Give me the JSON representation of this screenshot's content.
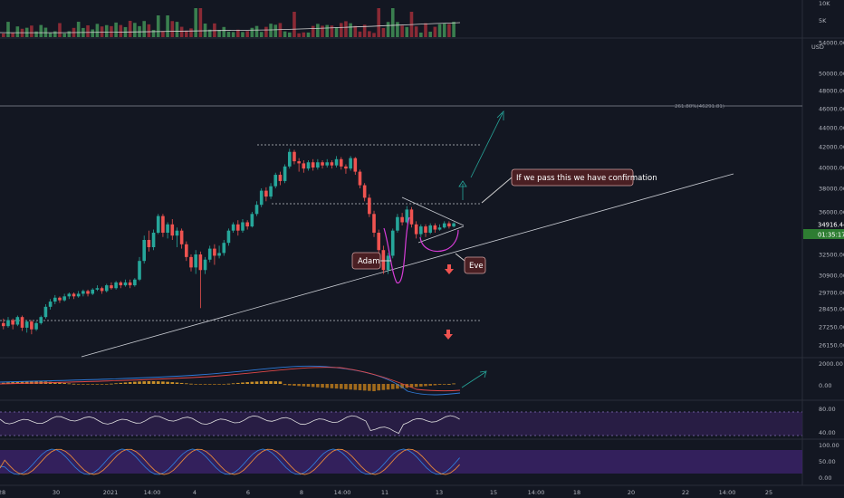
{
  "chart_data": {
    "type": "candlestick",
    "instrument_quote": "USD",
    "colors": {
      "up": "#26a69a",
      "down": "#ef5350",
      "bg": "#131722",
      "grid": "#1e222d"
    },
    "main": {
      "y_ticks": [
        26150,
        27250,
        28450,
        29700,
        30900,
        32500,
        34000,
        36000,
        38000,
        40000,
        42000,
        44000,
        46000,
        48000,
        50000,
        54000
      ],
      "candles": [
        [
          27500,
          27300,
          27800,
          27100
        ],
        [
          27300,
          27700,
          27900,
          27200
        ],
        [
          27700,
          27400,
          27800,
          27100
        ],
        [
          27400,
          27900,
          28000,
          27300
        ],
        [
          27900,
          27200,
          28000,
          27000
        ],
        [
          27200,
          27600,
          27700,
          26900
        ],
        [
          27600,
          27100,
          27700,
          26800
        ],
        [
          27100,
          27500,
          27600,
          27000
        ],
        [
          27500,
          27900,
          28000,
          27400
        ],
        [
          27900,
          28600,
          28800,
          27800
        ],
        [
          28600,
          29000,
          29200,
          28400
        ],
        [
          29000,
          29300,
          29500,
          28800
        ],
        [
          29300,
          29100,
          29400,
          28900
        ],
        [
          29100,
          29400,
          29600,
          29000
        ],
        [
          29400,
          29600,
          29700,
          29200
        ],
        [
          29600,
          29400,
          29700,
          29200
        ],
        [
          29400,
          29600,
          29800,
          29300
        ],
        [
          29600,
          29800,
          29900,
          29400
        ],
        [
          29800,
          29600,
          29900,
          29400
        ],
        [
          29600,
          29900,
          30000,
          29500
        ],
        [
          29900,
          30000,
          30200,
          29800
        ],
        [
          30000,
          29800,
          30100,
          29600
        ],
        [
          29800,
          30200,
          30300,
          29700
        ],
        [
          30200,
          30000,
          30400,
          29900
        ],
        [
          30000,
          30400,
          30500,
          29900
        ],
        [
          30400,
          30200,
          30500,
          30000
        ],
        [
          30200,
          30400,
          30600,
          30100
        ],
        [
          30400,
          30200,
          30600,
          30000
        ],
        [
          30200,
          30600,
          30700,
          30100
        ],
        [
          30600,
          32000,
          32300,
          30500
        ],
        [
          32000,
          33500,
          33800,
          31800
        ],
        [
          33500,
          33000,
          34200,
          32700
        ],
        [
          33000,
          34000,
          34300,
          32800
        ],
        [
          34000,
          35600,
          35800,
          33900
        ],
        [
          35600,
          34000,
          35800,
          33700
        ],
        [
          34000,
          34800,
          35000,
          33600
        ],
        [
          34800,
          33800,
          35300,
          33500
        ],
        [
          33800,
          34200,
          34500,
          33000
        ],
        [
          34200,
          33200,
          34400,
          32900
        ],
        [
          33200,
          32300,
          33400,
          32000
        ],
        [
          32300,
          31500,
          32500,
          31200
        ],
        [
          31500,
          32500,
          32800,
          31000
        ],
        [
          32500,
          31300,
          32700,
          28500
        ],
        [
          31300,
          32100,
          32300,
          31000
        ],
        [
          32100,
          32900,
          33100,
          31900
        ],
        [
          32900,
          32400,
          33200,
          31700
        ],
        [
          32400,
          32600,
          33100,
          32200
        ],
        [
          32600,
          33300,
          33500,
          32400
        ],
        [
          33300,
          34200,
          34400,
          33100
        ],
        [
          34200,
          34800,
          35000,
          34000
        ],
        [
          34800,
          34200,
          35200,
          33800
        ],
        [
          34200,
          35000,
          35300,
          34000
        ],
        [
          35000,
          34600,
          35200,
          34300
        ],
        [
          34600,
          35800,
          36000,
          34500
        ],
        [
          35800,
          36600,
          36900,
          35600
        ],
        [
          36600,
          37800,
          38000,
          36400
        ],
        [
          37800,
          37300,
          38100,
          36900
        ],
        [
          37300,
          38200,
          38500,
          37100
        ],
        [
          38200,
          39300,
          39500,
          38000
        ],
        [
          39300,
          38700,
          39600,
          38300
        ],
        [
          38700,
          40100,
          40300,
          38500
        ],
        [
          40100,
          41500,
          41800,
          39900
        ],
        [
          41500,
          40600,
          41700,
          40300
        ],
        [
          40600,
          40400,
          40900,
          39600
        ],
        [
          40400,
          39900,
          40700,
          39500
        ],
        [
          39900,
          40500,
          40700,
          39700
        ],
        [
          40500,
          40000,
          40800,
          39700
        ],
        [
          40000,
          40500,
          40800,
          39800
        ],
        [
          40500,
          40200,
          40700,
          39900
        ],
        [
          40200,
          40500,
          40800,
          40000
        ],
        [
          40500,
          40200,
          40700,
          39900
        ],
        [
          40200,
          40800,
          41100,
          40000
        ],
        [
          40800,
          40100,
          41000,
          39800
        ],
        [
          40100,
          39900,
          40300,
          39400
        ],
        [
          39900,
          40900,
          41100,
          39700
        ],
        [
          40900,
          39600,
          41000,
          39300
        ],
        [
          39600,
          38300,
          39800,
          38000
        ],
        [
          38300,
          37200,
          38500,
          36900
        ],
        [
          37200,
          35800,
          37500,
          35500
        ],
        [
          35800,
          34000,
          36100,
          33700
        ],
        [
          34000,
          32800,
          34300,
          32500
        ],
        [
          32800,
          31300,
          33100,
          31000
        ],
        [
          31300,
          32400,
          32600,
          31000
        ],
        [
          32400,
          34200,
          34400,
          32200
        ],
        [
          34200,
          35500,
          35800,
          34000
        ],
        [
          35500,
          35000,
          35900,
          34700
        ],
        [
          35000,
          36200,
          36500,
          34900
        ],
        [
          36200,
          34800,
          36400,
          34500
        ],
        [
          34800,
          33900,
          35100,
          33600
        ],
        [
          33900,
          34600,
          34800,
          33700
        ],
        [
          34600,
          34000,
          34800,
          33700
        ],
        [
          34000,
          34700,
          34900,
          33900
        ],
        [
          34700,
          34300,
          34900,
          34000
        ],
        [
          34300,
          34500,
          34800,
          34200
        ],
        [
          34500,
          34900,
          35100,
          34400
        ],
        [
          34900,
          34600,
          35100,
          34400
        ],
        [
          34600,
          34900,
          35000,
          34500
        ]
      ],
      "last_price_label": "34916.44",
      "countdown_label": "01:35:17",
      "fib_labels": [
        "261.80%(46291.81)"
      ],
      "annotations": {
        "confirmation": "If we pass this we have confirmation",
        "adam": "Adam",
        "eve": "Eve"
      }
    },
    "volume": {
      "y_ticks": [
        "10K",
        "5K"
      ]
    },
    "macd": {
      "y_ticks": [
        "2000.00",
        "0.00"
      ]
    },
    "rsi": {
      "y_ticks": [
        "80.00",
        "40.00"
      ]
    },
    "stoch": {
      "y_ticks": [
        "100.00",
        "50.00",
        "0.00"
      ]
    },
    "x_axis": {
      "ticks": [
        {
          "label": "28",
          "x": 2
        },
        {
          "label": "30",
          "x": 62
        },
        {
          "label": "2021",
          "x": 122
        },
        {
          "label": "14:00",
          "x": 168
        },
        {
          "label": "4",
          "x": 215
        },
        {
          "label": "6",
          "x": 274
        },
        {
          "label": "8",
          "x": 333
        },
        {
          "label": "14:00",
          "x": 378
        },
        {
          "label": "11",
          "x": 425
        },
        {
          "label": "13",
          "x": 485
        },
        {
          "label": "15",
          "x": 545
        },
        {
          "label": "14:00",
          "x": 592
        },
        {
          "label": "18",
          "x": 637
        },
        {
          "label": "20",
          "x": 697
        },
        {
          "label": "22",
          "x": 757
        },
        {
          "label": "14:00",
          "x": 803
        },
        {
          "label": "25",
          "x": 849
        }
      ]
    }
  }
}
